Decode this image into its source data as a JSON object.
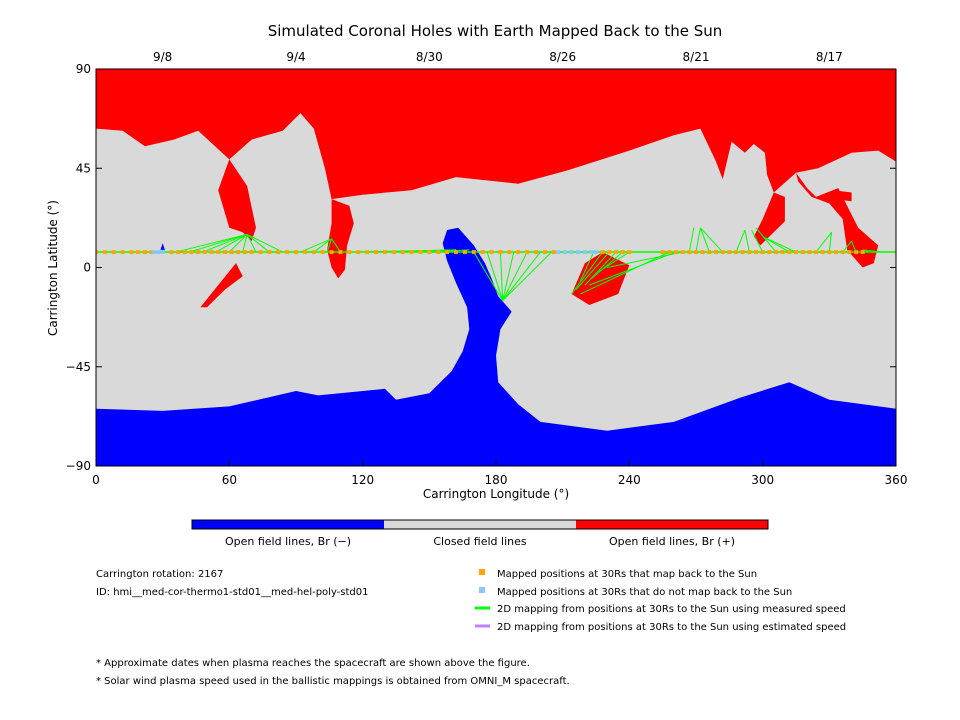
{
  "title": "Simulated Coronal Holes with Earth Mapped Back to the Sun",
  "colors": {
    "open_negative": "#0000ff",
    "closed": "#d9d9d9",
    "open_positive": "#ff0000",
    "mapped_back": "#ffa500",
    "not_mapped_back": "#8cc6ff",
    "measured_speed_line": "#00ff00",
    "estimated_speed_line": "#c080ff"
  },
  "colorbar": {
    "labels": [
      "Open field lines, Br (−)",
      "Closed field lines",
      "Open field lines, Br (+)"
    ]
  },
  "info": {
    "rotation": "Carrington rotation: 2167",
    "id": "ID: hmi__med-cor-thermo1-std01__med-hel-poly-std01"
  },
  "legend": [
    {
      "marker": "square",
      "color": "#ffa500",
      "label": "Mapped positions at 30Rs that map back to the Sun"
    },
    {
      "marker": "square",
      "color": "#8cc6ff",
      "label": "Mapped positions at 30Rs that do not map back to the Sun"
    },
    {
      "marker": "line",
      "color": "#00ff00",
      "label": "2D mapping from positions at 30Rs to the Sun using measured speed"
    },
    {
      "marker": "line",
      "color": "#c080ff",
      "label": "2D mapping from positions at 30Rs to the Sun using estimated speed"
    }
  ],
  "notes": [
    "* Approximate dates when plasma reaches the spacecraft are shown above the figure.",
    "* Solar wind plasma speed used in the ballistic mappings is obtained from OMNI_M spacecraft."
  ],
  "chart_data": {
    "type": "heatmap",
    "title": "Simulated Coronal Holes with Earth Mapped Back to the Sun",
    "xlabel": "Carrington Longitude (°)",
    "ylabel": "Carrington Latitude (°)",
    "xlim": [
      0,
      360
    ],
    "ylim": [
      -90,
      90
    ],
    "xticks": [
      0,
      60,
      120,
      180,
      240,
      300,
      360
    ],
    "yticks": [
      -90,
      -45,
      0,
      45,
      90
    ],
    "top_axis_dates": [
      {
        "label": "9/8",
        "lon": 30
      },
      {
        "label": "9/4",
        "lon": 90
      },
      {
        "label": "8/30",
        "lon": 150
      },
      {
        "label": "8/26",
        "lon": 210
      },
      {
        "label": "8/21",
        "lon": 270
      },
      {
        "label": "8/17",
        "lon": 330
      }
    ],
    "regions": [
      {
        "name": "Open field lines, Br (−)",
        "color": "#0000ff",
        "polygons": [
          [
            [
              0,
              -64
            ],
            [
              30,
              -65
            ],
            [
              60,
              -63
            ],
            [
              90,
              -56
            ],
            [
              100,
              -58
            ],
            [
              130,
              -55
            ],
            [
              135,
              -60
            ],
            [
              150,
              -57
            ],
            [
              160,
              -47
            ],
            [
              165,
              -38
            ],
            [
              168,
              -28
            ],
            [
              167,
              -18
            ],
            [
              162,
              -7
            ],
            [
              158,
              3
            ],
            [
              156,
              11
            ],
            [
              158,
              17
            ],
            [
              163,
              18
            ],
            [
              170,
              10
            ],
            [
              175,
              2
            ],
            [
              178,
              -5
            ],
            [
              181,
              -13
            ],
            [
              187,
              -20
            ],
            [
              182,
              -28
            ],
            [
              180,
              -40
            ],
            [
              181,
              -52
            ],
            [
              190,
              -62
            ],
            [
              200,
              -70
            ],
            [
              230,
              -74
            ],
            [
              260,
              -70
            ],
            [
              290,
              -59
            ],
            [
              312,
              -52
            ],
            [
              330,
              -60
            ],
            [
              360,
              -64
            ],
            [
              360,
              -90
            ],
            [
              0,
              -90
            ]
          ],
          [
            [
              29,
              8
            ],
            [
              30,
              11
            ],
            [
              31,
              8
            ]
          ]
        ]
      },
      {
        "name": "Open field lines, Br (+)",
        "color": "#ff0000",
        "polygons": [
          [
            [
              0,
              90
            ],
            [
              360,
              90
            ],
            [
              360,
              48
            ],
            [
              352,
              53
            ],
            [
              340,
              52
            ],
            [
              325,
              45
            ],
            [
              315,
              43
            ],
            [
              305,
              34
            ],
            [
              302,
              42
            ],
            [
              301,
              52
            ],
            [
              296,
              56
            ],
            [
              292,
              52
            ],
            [
              286,
              57
            ],
            [
              282,
              40
            ],
            [
              279,
              48
            ],
            [
              272,
              63
            ],
            [
              260,
              60
            ],
            [
              240,
              53
            ],
            [
              212,
              44
            ],
            [
              190,
              38
            ],
            [
              162,
              41
            ],
            [
              142,
              35
            ],
            [
              120,
              33
            ],
            [
              106,
              31
            ],
            [
              103,
              45
            ],
            [
              98,
              63
            ],
            [
              92,
              70
            ],
            [
              84,
              62
            ],
            [
              70,
              58
            ],
            [
              60,
              49
            ],
            [
              46,
              62
            ],
            [
              35,
              58
            ],
            [
              22,
              55
            ],
            [
              12,
              62
            ],
            [
              0,
              63
            ]
          ],
          [
            [
              60,
              49
            ],
            [
              68,
              37
            ],
            [
              72,
              18
            ],
            [
              70,
              12
            ],
            [
              66,
              16
            ],
            [
              60,
              18
            ],
            [
              55,
              35
            ]
          ],
          [
            [
              106,
              31
            ],
            [
              106,
              20
            ],
            [
              104,
              8
            ],
            [
              106,
              0
            ],
            [
              109,
              -5
            ],
            [
              112,
              -1
            ],
            [
              113,
              10
            ],
            [
              116,
              20
            ],
            [
              114,
              28
            ]
          ],
          [
            [
              305,
              34
            ],
            [
              300,
              22
            ],
            [
              296,
              14
            ],
            [
              299,
              10
            ],
            [
              304,
              15
            ],
            [
              310,
              21
            ],
            [
              310,
              32
            ]
          ],
          [
            [
              315,
              43
            ],
            [
              320,
              36
            ],
            [
              324,
              32
            ],
            [
              334,
              36
            ],
            [
              338,
              28
            ],
            [
              343,
              18
            ],
            [
              352,
              10
            ],
            [
              350,
              2
            ],
            [
              345,
              0
            ],
            [
              338,
              8
            ],
            [
              336,
              22
            ],
            [
              330,
              29
            ],
            [
              322,
              32
            ],
            [
              316,
              39
            ]
          ],
          [
            [
              332,
              35
            ],
            [
              340,
              34
            ],
            [
              340,
              30
            ],
            [
              332,
              31
            ]
          ],
          [
            [
              47,
              -18
            ],
            [
              55,
              -8
            ],
            [
              63,
              2
            ],
            [
              66,
              -4
            ],
            [
              58,
              -10
            ],
            [
              50,
              -18
            ]
          ],
          [
            [
              214,
              -12
            ],
            [
              220,
              2
            ],
            [
              228,
              7
            ],
            [
              240,
              1
            ],
            [
              235,
              -12
            ],
            [
              222,
              -17
            ]
          ]
        ]
      }
    ],
    "spacecraft_track_lat": 7,
    "mapped_positions_lon": [
      0,
      4,
      8,
      12,
      16,
      19,
      22,
      25,
      34,
      37,
      40,
      43,
      46,
      49,
      52,
      55,
      58,
      61,
      64,
      67,
      70,
      74,
      78,
      82,
      86,
      90,
      94,
      98,
      102,
      106,
      110,
      114,
      118,
      122,
      126,
      130,
      134,
      138,
      142,
      146,
      150,
      154,
      158,
      162,
      166,
      170,
      174,
      178,
      182,
      186,
      190,
      194,
      198,
      202,
      206,
      228,
      231,
      234,
      237,
      240,
      255,
      258,
      261,
      264,
      267,
      270,
      273,
      276,
      279,
      282,
      285,
      288,
      291,
      294,
      297,
      300,
      303,
      306,
      309,
      312,
      315,
      318,
      321,
      324,
      327,
      330,
      333,
      336,
      339,
      342,
      345
    ],
    "unmapped_positions_lon": [
      26,
      28,
      30,
      208,
      211,
      214,
      217,
      220,
      223,
      225
    ],
    "measured_speed_mappings": [
      [
        [
          36,
          7
        ],
        [
          68,
          15
        ]
      ],
      [
        [
          42,
          7
        ],
        [
          68,
          15
        ]
      ],
      [
        [
          48,
          7
        ],
        [
          68,
          15
        ]
      ],
      [
        [
          54,
          7
        ],
        [
          68,
          15
        ]
      ],
      [
        [
          60,
          7
        ],
        [
          67,
          14
        ]
      ],
      [
        [
          66,
          7
        ],
        [
          68,
          15
        ]
      ],
      [
        [
          72,
          7
        ],
        [
          68,
          15
        ]
      ],
      [
        [
          78,
          7
        ],
        [
          68,
          15
        ]
      ],
      [
        [
          84,
          7
        ],
        [
          68,
          15
        ]
      ],
      [
        [
          92,
          7
        ],
        [
          106,
          13
        ]
      ],
      [
        [
          98,
          7
        ],
        [
          106,
          13
        ]
      ],
      [
        [
          104,
          7
        ],
        [
          106,
          13
        ]
      ],
      [
        [
          110,
          7
        ],
        [
          106,
          13
        ]
      ],
      [
        [
          118,
          7
        ],
        [
          162,
          8
        ]
      ],
      [
        [
          126,
          7
        ],
        [
          162,
          8
        ]
      ],
      [
        [
          134,
          7
        ],
        [
          162,
          8
        ]
      ],
      [
        [
          142,
          7
        ],
        [
          162,
          8
        ]
      ],
      [
        [
          150,
          7
        ],
        [
          162,
          8
        ]
      ],
      [
        [
          158,
          7
        ],
        [
          162,
          8
        ]
      ],
      [
        [
          150,
          7
        ],
        [
          168,
          8
        ]
      ],
      [
        [
          170,
          7
        ],
        [
          183,
          -15
        ]
      ],
      [
        [
          176,
          7
        ],
        [
          183,
          -15
        ]
      ],
      [
        [
          182,
          7
        ],
        [
          183,
          -15
        ]
      ],
      [
        [
          188,
          7
        ],
        [
          183,
          -15
        ]
      ],
      [
        [
          194,
          7
        ],
        [
          183,
          -15
        ]
      ],
      [
        [
          200,
          7
        ],
        [
          183,
          -15
        ]
      ],
      [
        [
          205,
          7
        ],
        [
          183,
          -15
        ]
      ],
      [
        [
          228,
          7
        ],
        [
          214,
          -12
        ]
      ],
      [
        [
          231,
          7
        ],
        [
          216,
          -10
        ]
      ],
      [
        [
          234,
          7
        ],
        [
          220,
          -8
        ]
      ],
      [
        [
          237,
          7
        ],
        [
          223,
          -5
        ]
      ],
      [
        [
          240,
          7
        ],
        [
          226,
          -2
        ]
      ],
      [
        [
          224,
          7
        ],
        [
          218,
          -6
        ]
      ],
      [
        [
          258,
          7
        ],
        [
          218,
          -12
        ]
      ],
      [
        [
          261,
          7
        ],
        [
          222,
          -8
        ]
      ],
      [
        [
          264,
          7
        ],
        [
          230,
          0
        ]
      ],
      [
        [
          267,
          7
        ],
        [
          269,
          18
        ]
      ],
      [
        [
          270,
          7
        ],
        [
          272,
          18
        ]
      ],
      [
        [
          276,
          7
        ],
        [
          272,
          18
        ]
      ],
      [
        [
          282,
          7
        ],
        [
          272,
          18
        ]
      ],
      [
        [
          288,
          7
        ],
        [
          292,
          17
        ]
      ],
      [
        [
          294,
          7
        ],
        [
          292,
          17
        ]
      ],
      [
        [
          300,
          7
        ],
        [
          295,
          17
        ]
      ],
      [
        [
          306,
          7
        ],
        [
          297,
          18
        ]
      ],
      [
        [
          312,
          7
        ],
        [
          300,
          14
        ]
      ],
      [
        [
          315,
          7
        ],
        [
          300,
          14
        ]
      ],
      [
        [
          324,
          7
        ],
        [
          331,
          16
        ]
      ],
      [
        [
          330,
          7
        ],
        [
          331,
          16
        ]
      ],
      [
        [
          336,
          7
        ],
        [
          340,
          12
        ]
      ],
      [
        [
          342,
          7
        ],
        [
          340,
          12
        ]
      ],
      [
        [
          348,
          7
        ],
        [
          345,
          8
        ]
      ],
      [
        [
          354,
          7
        ],
        [
          345,
          8
        ]
      ]
    ],
    "estimated_speed_mappings": [],
    "grid": false,
    "legend_placement": "bottom"
  }
}
